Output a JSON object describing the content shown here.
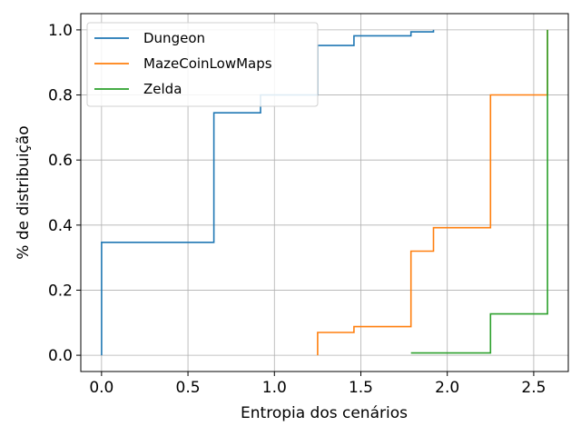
{
  "chart_data": {
    "type": "line",
    "step": true,
    "xlabel": "Entropia dos cenários",
    "ylabel": "% de distribuição",
    "xlim": [
      -0.12,
      2.7
    ],
    "ylim": [
      -0.05,
      1.05
    ],
    "xticks": [
      0.0,
      0.5,
      1.0,
      1.5,
      2.0,
      2.5
    ],
    "xtick_labels": [
      "0.0",
      "0.5",
      "1.0",
      "1.5",
      "2.0",
      "2.5"
    ],
    "yticks": [
      0.0,
      0.2,
      0.4,
      0.6,
      0.8,
      1.0
    ],
    "ytick_labels": [
      "0.0",
      "0.2",
      "0.4",
      "0.6",
      "0.8",
      "1.0"
    ],
    "grid": true,
    "legend_position": "top-left",
    "series": [
      {
        "name": "Dungeon",
        "color": "#1f77b4",
        "x": [
          0.0,
          0.0,
          0.65,
          0.92,
          1.25,
          1.46,
          1.79,
          1.92
        ],
        "y": [
          0.0,
          0.347,
          0.745,
          0.8,
          0.952,
          0.982,
          0.994,
          1.0
        ]
      },
      {
        "name": "MazeCoinLowMaps",
        "color": "#ff7f0e",
        "x": [
          1.25,
          1.25,
          1.46,
          1.79,
          1.92,
          2.25,
          2.58
        ],
        "y": [
          0.0,
          0.07,
          0.088,
          0.32,
          0.392,
          0.8,
          1.0
        ]
      },
      {
        "name": "Zelda",
        "color": "#2ca02c",
        "x": [
          1.79,
          2.25,
          2.58
        ],
        "y": [
          0.007,
          0.127,
          1.0
        ]
      }
    ]
  }
}
